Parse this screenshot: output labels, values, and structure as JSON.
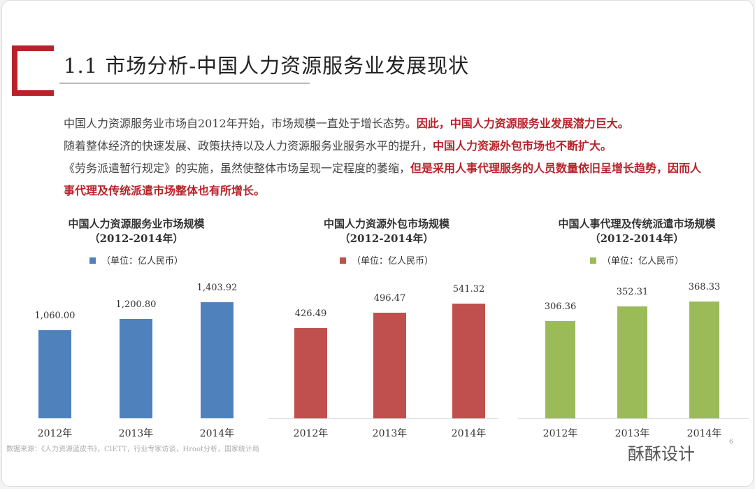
{
  "title": "1.1 市场分析-中国人力资源服务业发展现状",
  "paragraph": {
    "p1": "中国人力资源服务业市场自2012年开始，市场规模一直处于增长态势。",
    "p1_red": "因此，中国人力资源服务业发展潜力巨大。",
    "p2": "随着整体经济的快速发展、政策扶持以及人力资源服务业服务水平的提升，",
    "p2_red": "中国人力资源外包市场也不断扩大。",
    "p3": "《劳务派遣暂行规定》的实施，虽然使整体市场呈现一定程度的萎缩，",
    "p3_red": "但是采用人事代理服务的人员数量依旧呈增长趋势，因而人事代理及传统派遣市场整体也有所增长。"
  },
  "chart_data": [
    {
      "type": "bar",
      "title": "中国人力资源服务业市场规模",
      "subtitle": "（2012-2014年）",
      "legend": "（单位：亿人民币）",
      "color": "#4f81bd",
      "categories": [
        "2012年",
        "2013年",
        "2014年"
      ],
      "values": [
        1060.0,
        1200.8,
        1403.92
      ],
      "labels": [
        "1,060.00",
        "1,200.80",
        "1,403.92"
      ],
      "ymax": 1560
    },
    {
      "type": "bar",
      "title": "中国人力资源外包市场规模",
      "subtitle": "（2012-2014年）",
      "legend": "（单位：亿人民币）",
      "color": "#c0504d",
      "categories": [
        "2012年",
        "2013年",
        "2014年"
      ],
      "values": [
        426.49,
        496.47,
        541.32
      ],
      "labels": [
        "426.49",
        "496.47",
        "541.32"
      ],
      "ymax": 610
    },
    {
      "type": "bar",
      "title": "中国人事代理及传统派遣市场规模",
      "subtitle": "（2012-2014年）",
      "legend": "（单位：亿人民币）",
      "color": "#9bbb59",
      "categories": [
        "2012年",
        "2013年",
        "2014年"
      ],
      "values": [
        306.36,
        352.31,
        368.33
      ],
      "labels": [
        "306.36",
        "352.31",
        "368.33"
      ],
      "ymax": 408
    }
  ],
  "source": "数据来源：《人力资源蓝皮书》，CIETT，行业专家访谈，Hroot分析，国家统计局",
  "watermark": "酥酥设计",
  "page_number": "6"
}
